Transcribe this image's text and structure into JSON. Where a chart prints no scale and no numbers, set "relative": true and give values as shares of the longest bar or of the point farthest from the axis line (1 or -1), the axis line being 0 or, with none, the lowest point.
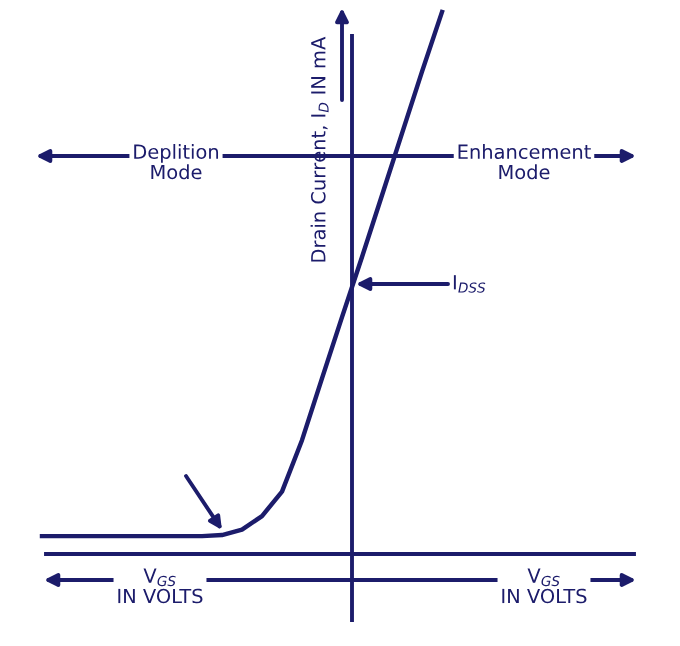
{
  "chart_data": {
    "type": "line",
    "relative": true,
    "ylabel": "Drain Current, I$_{D}$ IN mA",
    "categories": [
      null,
      null,
      null,
      null,
      null,
      null,
      null,
      null,
      null,
      null,
      null,
      null,
      null,
      null,
      null,
      null,
      null,
      null,
      null,
      null,
      null
    ],
    "series": [
      {
        "color": "#1c1c6b",
        "values": [
          0.033,
          0.033,
          0.033,
          0.033,
          0.033,
          0.033,
          0.033,
          0.033,
          0.033,
          0.035,
          0.045,
          0.07,
          0.115,
          0.21,
          0.324,
          0.437,
          0.548,
          0.662,
          0.776,
          0.89,
          1.0
        ]
      }
    ],
    "annotations": [
      "Deplition\nMode",
      "Enhancement\nMode",
      "V$_{GS}$\nIN VOLTS",
      "V$_{GS}$\nIN VOLTS",
      "I$_{DSS}$"
    ],
    "marker": "none",
    "line_style": "solid",
    "grid": false,
    "legend": false
  }
}
